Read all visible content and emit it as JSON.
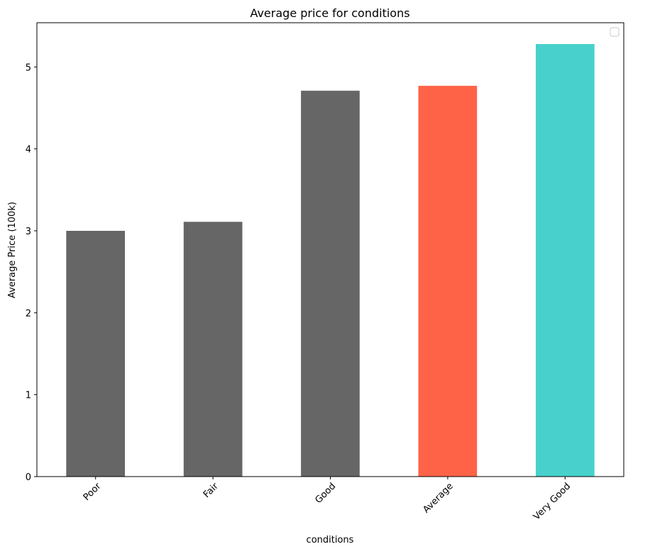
{
  "chart_data": {
    "type": "bar",
    "title": "Average price for conditions",
    "xlabel": "conditions",
    "ylabel": "Average Price (100k)",
    "categories": [
      "Poor",
      "Fair",
      "Good",
      "Average",
      "Very Good"
    ],
    "values": [
      3.0,
      3.11,
      4.71,
      4.77,
      5.28
    ],
    "bar_colors": [
      "#666666",
      "#666666",
      "#666666",
      "#ff6347",
      "#48d1cc"
    ],
    "ylim": [
      0,
      5.54
    ],
    "yticks": [
      0,
      1,
      2,
      3,
      4,
      5
    ],
    "grid": false,
    "legend": {
      "placement": "top-right",
      "entries": []
    }
  }
}
